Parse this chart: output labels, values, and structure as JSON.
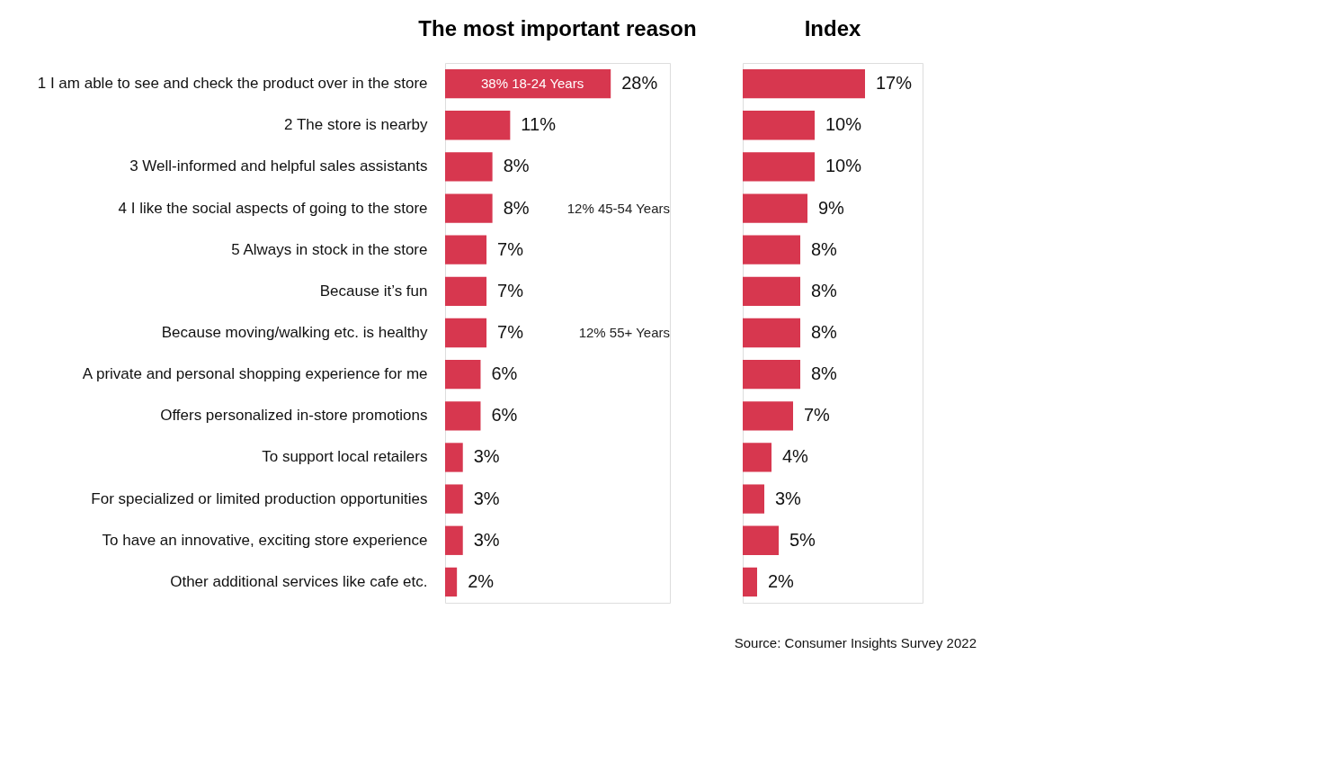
{
  "chart_data": [
    {
      "type": "bar",
      "orientation": "horizontal",
      "title": "The most important reason",
      "categories": [
        "1 I am able to see and check the product over in the store",
        "2 The store is nearby",
        "3 Well-informed and helpful sales assistants",
        "4 I like the social aspects of going to the store",
        "5 Always in stock in the store",
        "Because it’s fun",
        "Because moving/walking etc. is healthy",
        "A private and personal shopping experience for me",
        "Offers personalized in-store promotions",
        "To support local retailers",
        "For specialized or limited production opportunities",
        "To have an innovative, exciting store experience",
        "Other additional services like cafe etc."
      ],
      "values": [
        28,
        11,
        8,
        8,
        7,
        7,
        7,
        6,
        6,
        3,
        3,
        3,
        2
      ],
      "value_labels": [
        "28%",
        "11%",
        "8%",
        "8%",
        "7%",
        "7%",
        "7%",
        "6%",
        "6%",
        "3%",
        "3%",
        "3%",
        "2%"
      ],
      "color": "#d7374f",
      "xlim": [
        0,
        38
      ],
      "tick_labels": "y",
      "grid": false,
      "annotations": [
        {
          "text": "38% 18-24 Years",
          "x": 28,
          "y": "1 I am able to see and check the product over in the store"
        },
        "12% 45-54 Years",
        "12% 55+ Years"
      ]
    },
    {
      "type": "bar",
      "orientation": "horizontal",
      "title": "Index",
      "categories": [
        null,
        null,
        null,
        null,
        null,
        null,
        null,
        null,
        null,
        null,
        null,
        null,
        null
      ],
      "values": [
        17,
        10,
        10,
        9,
        8,
        8,
        8,
        8,
        7,
        4,
        3,
        5,
        2
      ],
      "value_labels": [
        "17%",
        "10%",
        "10%",
        "9%",
        "8%",
        "8%",
        "8%",
        "8%",
        "7%",
        "4%",
        "3%",
        "5%",
        "2%"
      ],
      "color": "#d7374f",
      "xlim": [
        0,
        25
      ],
      "tick_labels": false,
      "grid": false,
      "annotations": [
        "Source: Consumer Insights Survey 2022"
      ]
    }
  ]
}
